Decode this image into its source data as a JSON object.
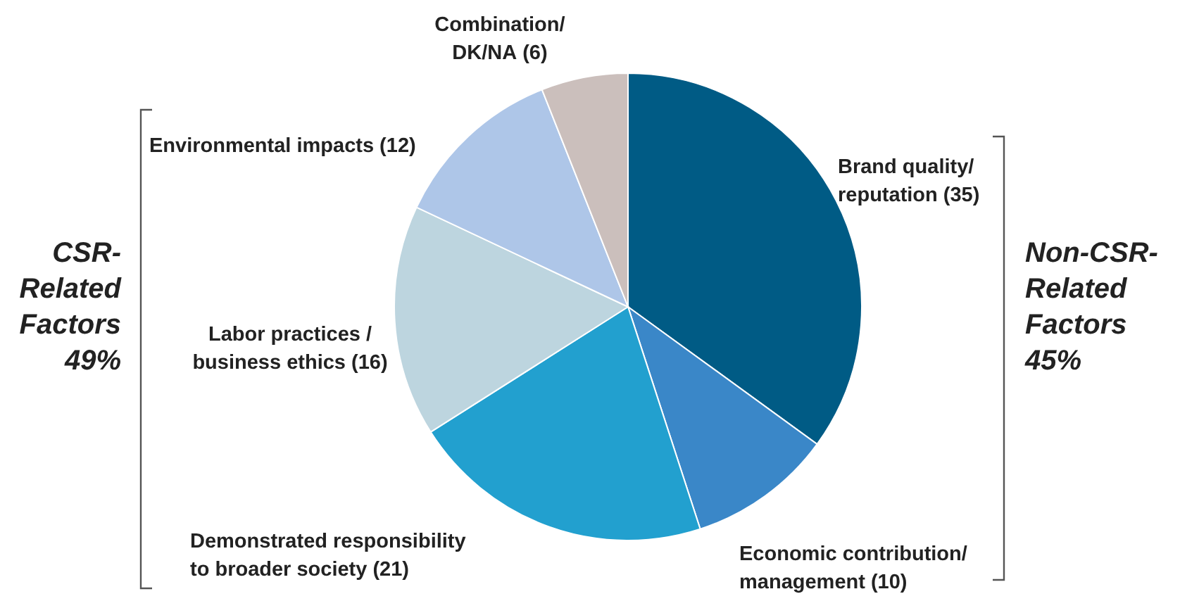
{
  "chart_data": {
    "type": "pie",
    "categories": [
      "Brand quality/ reputation",
      "Economic contribution/ management",
      "Demonstrated responsibility to broader society",
      "Labor practices / business ethics",
      "Environmental impacts",
      "Combination/ DK/NA"
    ],
    "values": [
      35,
      10,
      21,
      16,
      12,
      6
    ],
    "colors": [
      "#005b85",
      "#3a87c8",
      "#22a0cf",
      "#bdd5df",
      "#aec6e8",
      "#cbbfbc"
    ],
    "value_labels": [
      "(35)",
      "(10)",
      "(21)",
      "(16)",
      "(12)",
      "(6)"
    ],
    "annotations": [
      "CSR-Related Factors 49%",
      "Non-CSR-Related Factors 45%"
    ]
  }
}
